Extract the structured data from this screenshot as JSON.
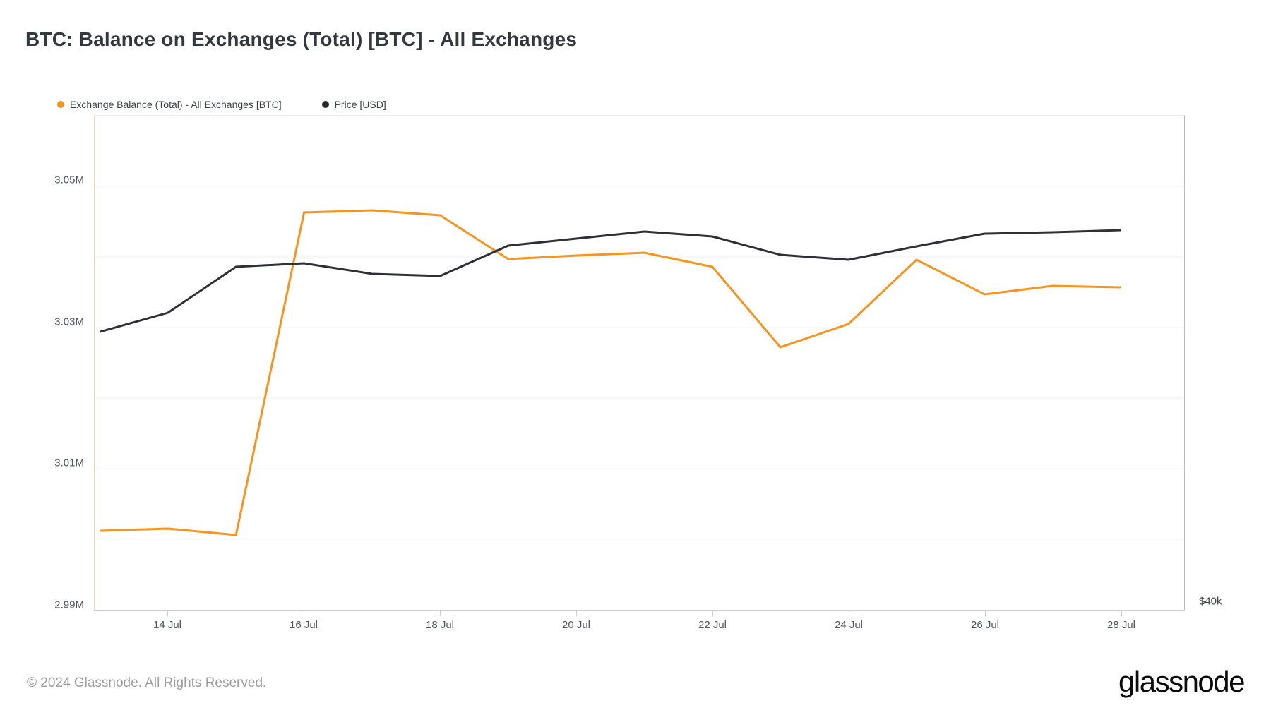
{
  "page": {
    "title": "BTC: Balance on Exchanges (Total) [BTC] - All Exchanges"
  },
  "legend": {
    "items": [
      {
        "label": "Exchange Balance (Total) - All Exchanges [BTC]",
        "color": "#f7941d"
      },
      {
        "label": "Price [USD]",
        "color": "#26282c"
      }
    ]
  },
  "chart_data": {
    "type": "line",
    "title": "BTC: Balance on Exchanges (Total) [BTC] - All Exchanges",
    "x": [
      "13 Jul",
      "14 Jul",
      "15 Jul",
      "16 Jul",
      "17 Jul",
      "18 Jul",
      "19 Jul",
      "20 Jul",
      "21 Jul",
      "22 Jul",
      "23 Jul",
      "24 Jul",
      "25 Jul",
      "26 Jul",
      "27 Jul",
      "28 Jul"
    ],
    "x_tick_labels": [
      {
        "index": 1,
        "label": "14 Jul"
      },
      {
        "index": 3,
        "label": "16 Jul"
      },
      {
        "index": 5,
        "label": "18 Jul"
      },
      {
        "index": 7,
        "label": "20 Jul"
      },
      {
        "index": 9,
        "label": "22 Jul"
      },
      {
        "index": 11,
        "label": "24 Jul"
      },
      {
        "index": 13,
        "label": "26 Jul"
      },
      {
        "index": 15,
        "label": "28 Jul"
      }
    ],
    "left_axis": {
      "unit": "million BTC",
      "ylim": [
        2.99,
        3.06
      ],
      "gridline_step": 0.01,
      "ticks": [
        {
          "value": 3.05,
          "label": "3.05M"
        },
        {
          "value": 3.03,
          "label": "3.03M"
        },
        {
          "value": 3.01,
          "label": "3.01M"
        },
        {
          "value": 2.99,
          "label": "2.99M"
        }
      ]
    },
    "right_axis": {
      "visible_label": "$40k",
      "note": "only the bottom-most right-axis label is visible in the image; price scale otherwise unlabeled"
    },
    "grid": true,
    "legend_position": "top-left",
    "series": [
      {
        "name": "Exchange Balance (Total) - All Exchanges [BTC]",
        "color": "#f7941d",
        "axis": "left",
        "unit": "million BTC",
        "values": [
          3.0012,
          3.0015,
          3.0006,
          3.0463,
          3.0466,
          3.0459,
          3.0397,
          3.0402,
          3.0406,
          3.0386,
          3.0272,
          3.0305,
          3.0396,
          3.0347,
          3.0359,
          3.0357
        ]
      },
      {
        "name": "Price [USD]",
        "color": "#2d3035",
        "axis": "right",
        "scale_note": "values expressed as plotted positions on the left axis scale (right axis unlabeled except $40k at bottom)",
        "values": [
          3.0294,
          3.0321,
          3.0386,
          3.0391,
          3.0376,
          3.0373,
          3.0416,
          3.0426,
          3.0436,
          3.0429,
          3.0403,
          3.0396,
          3.0415,
          3.0433,
          3.0435,
          3.0438
        ]
      }
    ]
  },
  "footer": {
    "copyright": "© 2024 Glassnode. All Rights Reserved.",
    "brand": "glassnode"
  }
}
